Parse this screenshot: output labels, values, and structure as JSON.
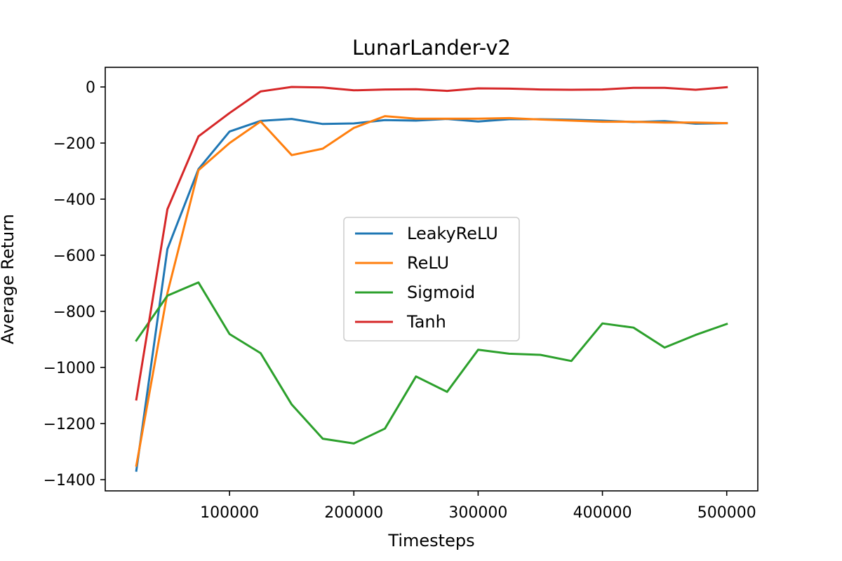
{
  "chart_data": {
    "type": "line",
    "title": "LunarLander-v2",
    "xlabel": "Timesteps",
    "ylabel": "Average Return",
    "xlim": [
      0,
      525000
    ],
    "ylim": [
      -1440,
      70
    ],
    "xticks": [
      100000,
      200000,
      300000,
      400000,
      500000
    ],
    "yticks": [
      0,
      -200,
      -400,
      -600,
      -800,
      -1000,
      -1200,
      -1400
    ],
    "legend_position": "center",
    "grid": false,
    "x": [
      25000,
      50000,
      75000,
      100000,
      125000,
      150000,
      175000,
      200000,
      225000,
      250000,
      275000,
      300000,
      325000,
      350000,
      375000,
      400000,
      425000,
      450000,
      475000,
      500000
    ],
    "series": [
      {
        "name": "LeakyReLU",
        "color": "#1f77b4",
        "values": [
          -1368,
          -578,
          -293,
          -159,
          -121,
          -114,
          -132,
          -130,
          -118,
          -120,
          -114,
          -123,
          -115,
          -115,
          -117,
          -120,
          -125,
          -122,
          -131,
          -129
        ]
      },
      {
        "name": "ReLU",
        "color": "#ff7f0e",
        "values": [
          -1350,
          -735,
          -297,
          -200,
          -123,
          -243,
          -220,
          -146,
          -104,
          -113,
          -113,
          -113,
          -111,
          -116,
          -120,
          -124,
          -124,
          -127,
          -127,
          -129
        ]
      },
      {
        "name": "Sigmoid",
        "color": "#2ca02c",
        "values": [
          -904,
          -744,
          -697,
          -881,
          -949,
          -1132,
          -1254,
          -1271,
          -1218,
          -1032,
          -1087,
          -937,
          -951,
          -955,
          -977,
          -843,
          -858,
          -929,
          -884,
          -845
        ]
      },
      {
        "name": "Tanh",
        "color": "#d62728",
        "values": [
          -1114,
          -436,
          -176,
          -93,
          -16,
          0,
          -2,
          -12,
          -9,
          -8,
          -14,
          -5,
          -6,
          -9,
          -10,
          -9,
          -3,
          -3,
          -10,
          -1
        ]
      }
    ]
  }
}
